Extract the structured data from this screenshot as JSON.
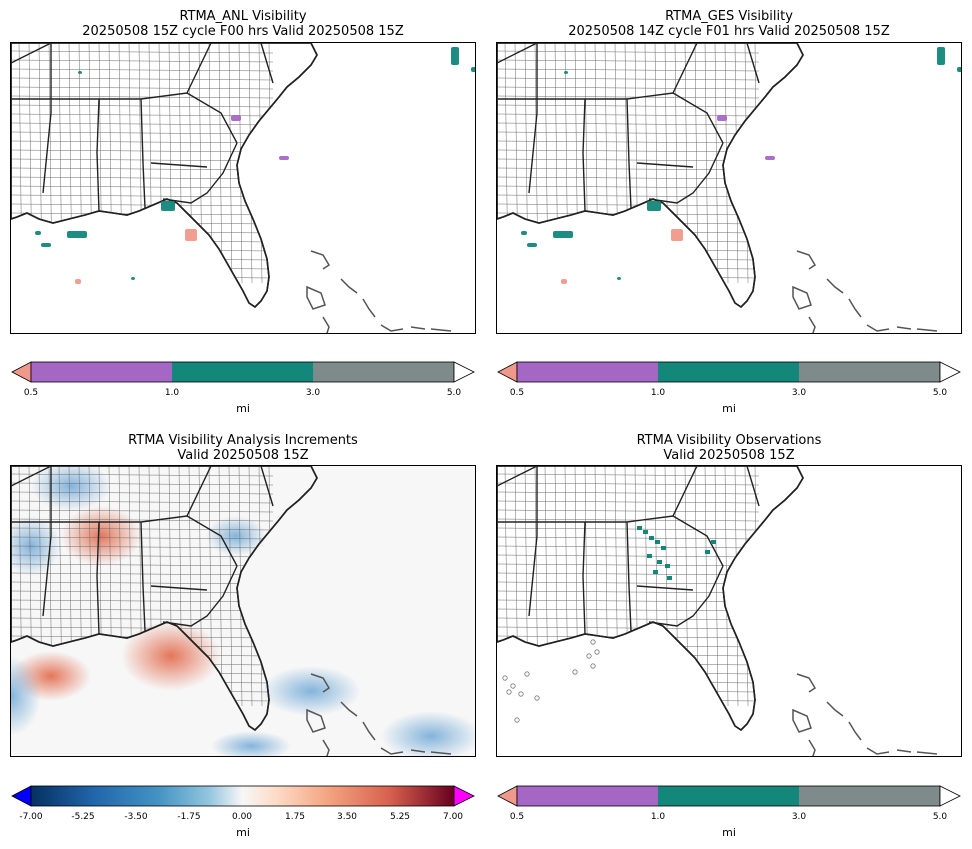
{
  "panels": [
    {
      "title_line1": "RTMA_ANL Visibility",
      "title_line2": "20250508 15Z cycle F00 hrs Valid 20250508 15Z"
    },
    {
      "title_line1": "RTMA_GES Visibility",
      "title_line2": "20250508 14Z cycle F01 hrs Valid 20250508 15Z"
    },
    {
      "title_line1": "RTMA Visibility Analysis Increments",
      "title_line2": "Valid 20250508 15Z"
    },
    {
      "title_line1": "RTMA Visibility Observations",
      "title_line2": "Valid 20250508 15Z"
    }
  ],
  "visibility_colorbar": {
    "unit": "mi",
    "ticks": [
      "0.5",
      "1.0",
      "3.0",
      "5.0"
    ],
    "colors": {
      "under": "#f0998a",
      "c1": "#a567c4",
      "c2": "#12877a",
      "c3": "#7f8a8a",
      "over": "#ffffff"
    }
  },
  "increment_colorbar": {
    "unit": "mi",
    "ticks": [
      "-7.00",
      "-5.25",
      "-3.50",
      "-1.75",
      "0.00",
      "1.75",
      "3.50",
      "5.25",
      "7.00"
    ],
    "colors": {
      "under": "#0000ff",
      "over": "#ff00ff"
    }
  },
  "colors": {
    "land": "#ffffff",
    "county_line": "#6b6b6b",
    "state_line": "#222222",
    "low_vis": "#f0998a",
    "mid_vis": "#12877a",
    "very_low_vis": "#a567c4",
    "increment_pos": "#e0603f",
    "increment_neg": "#6fa8d6"
  }
}
